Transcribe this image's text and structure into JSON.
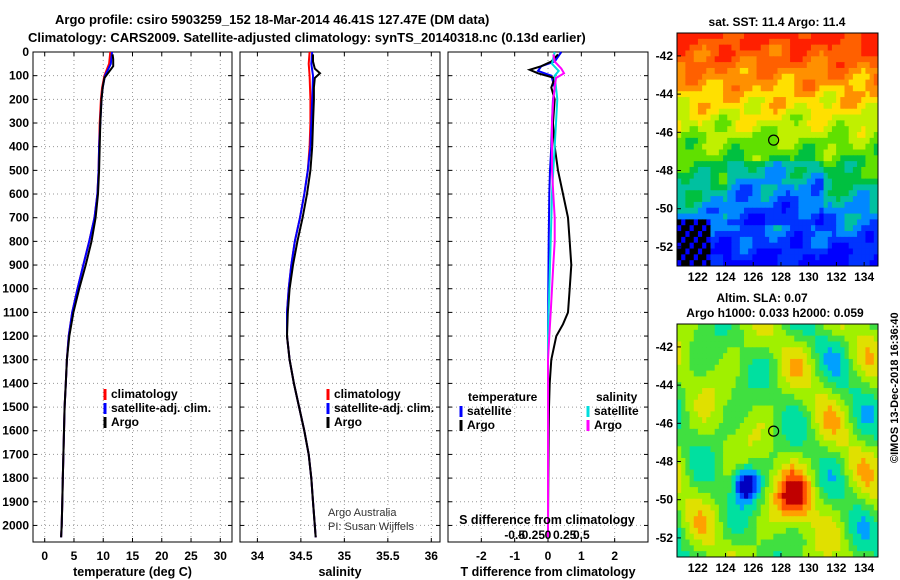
{
  "title": {
    "line1": "Argo profile: csiro 5903259_152 18-Mar-2014 46.41S 127.47E (DM data)",
    "line2": "Climatology: CARS2009. Satellite-adjusted climatology: synTS_20140318.nc (0.13d earlier)"
  },
  "colors": {
    "climatology": "#ff0000",
    "satellite": "#0000ff",
    "argo": "#000000",
    "satellite_salinity": "#00dddd",
    "argo_salinity": "#ff00ff"
  },
  "watermark": "©IMOS 13-Dec-2018 16:36:40",
  "chart_data": [
    {
      "type": "line",
      "panel": "temperature",
      "xlabel": "temperature (deg C)",
      "xlim": [
        -2,
        32
      ],
      "xticks": [
        0,
        5,
        10,
        15,
        20,
        25,
        30
      ],
      "xtick_labels": [
        "0",
        "5",
        "10",
        "15",
        "20",
        "25",
        "30"
      ],
      "ylim": [
        0,
        2070
      ],
      "yticks": [
        0,
        100,
        200,
        300,
        400,
        500,
        600,
        700,
        800,
        900,
        1000,
        1100,
        1200,
        1300,
        1400,
        1500,
        1600,
        1700,
        1800,
        1900,
        2000
      ],
      "ytick_labels": [
        "0",
        "100",
        "200",
        "300",
        "400",
        "500",
        "600",
        "700",
        "800",
        "900",
        "1000",
        "1100",
        "1200",
        "1300",
        "1400",
        "1500",
        "1600",
        "1700",
        "1800",
        "1900",
        "2000"
      ],
      "legend": [
        "climatology",
        "satellite-adj. clim.",
        "Argo"
      ],
      "series": [
        {
          "name": "climatology",
          "depth": [
            0,
            50,
            100,
            150,
            200,
            300,
            400,
            500,
            600,
            700,
            800,
            900,
            1000,
            1100,
            1200,
            1300,
            1400,
            1500,
            1600,
            1700,
            1800,
            1900,
            2000,
            2050
          ],
          "values": [
            11.2,
            11.0,
            10.2,
            9.8,
            9.6,
            9.4,
            9.3,
            9.2,
            9.0,
            8.5,
            7.6,
            6.6,
            5.6,
            4.7,
            4.1,
            3.8,
            3.6,
            3.4,
            3.3,
            3.2,
            3.1,
            3.0,
            2.9,
            2.8
          ]
        },
        {
          "name": "satellite-adj. clim.",
          "depth": [
            0,
            50,
            100,
            150,
            200,
            300,
            400,
            500,
            600,
            700,
            800,
            900,
            1000,
            1100,
            1200,
            1300,
            1400,
            1500,
            1600,
            1700,
            1800,
            1900,
            2000,
            2050
          ],
          "values": [
            11.5,
            11.3,
            10.3,
            9.9,
            9.7,
            9.5,
            9.3,
            9.2,
            9.0,
            8.5,
            7.6,
            6.6,
            5.6,
            4.7,
            4.1,
            3.8,
            3.6,
            3.4,
            3.3,
            3.2,
            3.1,
            3.0,
            2.9,
            2.8
          ]
        },
        {
          "name": "Argo",
          "depth": [
            10,
            30,
            60,
            90,
            110,
            150,
            200,
            300,
            400,
            500,
            600,
            700,
            800,
            900,
            1000,
            1100,
            1200,
            1300,
            1400,
            1500,
            1600,
            1700,
            1800,
            1900,
            2000,
            2050
          ],
          "values": [
            11.6,
            11.7,
            11.7,
            10.8,
            10.2,
            9.9,
            9.7,
            9.5,
            9.4,
            9.3,
            9.1,
            8.7,
            8.0,
            7.0,
            5.9,
            4.9,
            4.2,
            3.8,
            3.6,
            3.4,
            3.3,
            3.2,
            3.1,
            3.0,
            2.9,
            2.8
          ]
        }
      ]
    },
    {
      "type": "line",
      "panel": "salinity",
      "xlabel": "salinity",
      "xlim": [
        33.8,
        36.1
      ],
      "xticks": [
        34,
        34.5,
        35,
        35.5,
        36
      ],
      "xtick_labels": [
        "34",
        "34.5",
        "35",
        "35.5",
        "36"
      ],
      "ylim": [
        0,
        2070
      ],
      "legend": [
        "climatology",
        "satellite-adj. clim.",
        "Argo"
      ],
      "credit": [
        "Argo Australia",
        "PI: Susan Wijffels"
      ],
      "series": [
        {
          "name": "climatology",
          "depth": [
            0,
            50,
            100,
            200,
            300,
            400,
            500,
            600,
            700,
            800,
            900,
            1000,
            1100,
            1200,
            1300,
            1400,
            1500,
            1600,
            1700,
            1800,
            1900,
            2000,
            2050
          ],
          "values": [
            34.6,
            34.59,
            34.6,
            34.61,
            34.61,
            34.6,
            34.58,
            34.54,
            34.49,
            34.43,
            34.39,
            34.36,
            34.34,
            34.34,
            34.37,
            34.42,
            34.48,
            34.54,
            34.59,
            34.62,
            34.64,
            34.66,
            34.67
          ]
        },
        {
          "name": "satellite-adj. clim.",
          "depth": [
            0,
            50,
            100,
            200,
            300,
            400,
            500,
            600,
            700,
            800,
            900,
            1000,
            1100,
            1200,
            1300,
            1400,
            1500,
            1600,
            1700,
            1800,
            1900,
            2000,
            2050
          ],
          "values": [
            34.63,
            34.62,
            34.64,
            34.63,
            34.62,
            34.61,
            34.58,
            34.54,
            34.49,
            34.43,
            34.39,
            34.36,
            34.34,
            34.34,
            34.37,
            34.42,
            34.48,
            34.54,
            34.59,
            34.62,
            34.64,
            34.66,
            34.67
          ]
        },
        {
          "name": "Argo",
          "depth": [
            10,
            40,
            70,
            90,
            110,
            150,
            200,
            300,
            400,
            500,
            600,
            700,
            800,
            900,
            1000,
            1100,
            1200,
            1300,
            1400,
            1500,
            1600,
            1700,
            1800,
            1900,
            2000,
            2050
          ],
          "values": [
            34.64,
            34.64,
            34.66,
            34.72,
            34.66,
            34.65,
            34.65,
            34.64,
            34.63,
            34.61,
            34.57,
            34.52,
            34.46,
            34.41,
            34.37,
            34.35,
            34.34,
            34.37,
            34.42,
            34.48,
            34.54,
            34.59,
            34.62,
            34.64,
            34.66,
            34.67
          ]
        }
      ]
    },
    {
      "type": "line",
      "panel": "difference",
      "xlabel": "T difference from climatology",
      "xlim": [
        -3,
        3
      ],
      "xticks": [
        -2,
        -1,
        0,
        1,
        2
      ],
      "xtick_labels": [
        "-2",
        "-1",
        "0",
        "1",
        "2"
      ],
      "secondary_xlabel": "S difference from climatology",
      "secondary_xticks": [
        -0.5,
        -0.25,
        0,
        0.25,
        0.5
      ],
      "secondary_xtick_labels": [
        "-0.5",
        "-0.25",
        "0",
        "0.25",
        "0.5"
      ],
      "ylim": [
        0,
        2070
      ],
      "legend_temperature_title": "temperature",
      "legend_salinity_title": "salinity",
      "legend": [
        "satellite",
        "Argo"
      ],
      "series": [
        {
          "name": "temperature satellite",
          "depth": [
            0,
            40,
            60,
            80,
            100,
            150,
            200,
            300,
            400,
            500,
            600,
            800,
            1000,
            1200,
            1400,
            1600,
            1800,
            2000,
            2050
          ],
          "values": [
            0.4,
            0.2,
            -0.2,
            -0.3,
            0.1,
            0.2,
            0.15,
            0.12,
            0.1,
            0.06,
            0.04,
            0.02,
            0.01,
            0.0,
            0.0,
            0.0,
            0.0,
            0.0,
            0.0
          ]
        },
        {
          "name": "temperature Argo",
          "depth": [
            10,
            40,
            60,
            75,
            90,
            110,
            150,
            200,
            300,
            400,
            500,
            600,
            700,
            800,
            900,
            1000,
            1100,
            1150,
            1200,
            1300,
            1400,
            1500,
            1600,
            1800,
            2000,
            2050
          ],
          "values": [
            0.3,
            0.1,
            -0.2,
            -0.55,
            -0.3,
            0.2,
            0.1,
            0.2,
            0.15,
            0.2,
            0.3,
            0.45,
            0.6,
            0.65,
            0.7,
            0.65,
            0.6,
            0.45,
            0.25,
            0.1,
            0.05,
            0.03,
            0.02,
            0.01,
            0.0,
            0.0
          ]
        },
        {
          "name": "salinity satellite",
          "depth": [
            0,
            50,
            80,
            100,
            150,
            200,
            300,
            400,
            500,
            600,
            800,
            1000,
            1200,
            1400,
            1600,
            1800,
            2000,
            2050
          ],
          "values": [
            0.05,
            0.03,
            0.08,
            0.05,
            0.06,
            0.07,
            0.06,
            0.05,
            0.04,
            0.03,
            0.02,
            0.01,
            0.0,
            0.0,
            0.0,
            0.0,
            0.0,
            0.0
          ]
        },
        {
          "name": "salinity Argo",
          "depth": [
            10,
            40,
            70,
            90,
            110,
            150,
            200,
            300,
            400,
            500,
            600,
            700,
            800,
            900,
            1000,
            1100,
            1200,
            1300,
            1400,
            1600,
            2000,
            2050
          ],
          "values": [
            0.04,
            0.05,
            0.1,
            0.12,
            0.06,
            0.05,
            0.04,
            0.03,
            0.03,
            0.03,
            0.04,
            0.05,
            0.05,
            0.04,
            0.03,
            0.02,
            0.01,
            0.0,
            0.0,
            0.0,
            0.0,
            0.0
          ]
        }
      ]
    },
    {
      "type": "heatmap",
      "panel": "sst-map",
      "title": "sat. SST: 11.4 Argo: 11.4",
      "xlim": [
        120.5,
        135
      ],
      "ylim": [
        -53,
        -40.8
      ],
      "xticks": [
        122,
        124,
        126,
        128,
        130,
        132,
        134
      ],
      "xtick_labels": [
        "122",
        "124",
        "126",
        "128",
        "130",
        "132",
        "134"
      ],
      "yticks": [
        -42,
        -44,
        -46,
        -48,
        -50,
        -52
      ],
      "ytick_labels": [
        "-42",
        "-44",
        "-46",
        "-48",
        "-50",
        "-52"
      ],
      "marker": {
        "lon": 127.47,
        "lat": -46.41
      }
    },
    {
      "type": "heatmap",
      "panel": "sla-map",
      "title_line1": "Altim. SLA: 0.07",
      "title_line2": "Argo h1000: 0.033 h2000: 0.059",
      "xlim": [
        120.5,
        135
      ],
      "ylim": [
        -53,
        -40.8
      ],
      "xticks": [
        122,
        124,
        126,
        128,
        130,
        132,
        134
      ],
      "xtick_labels": [
        "122",
        "124",
        "126",
        "128",
        "130",
        "132",
        "134"
      ],
      "yticks": [
        -42,
        -44,
        -46,
        -48,
        -50,
        -52
      ],
      "ytick_labels": [
        "-42",
        "-44",
        "-46",
        "-48",
        "-50",
        "-52"
      ],
      "marker": {
        "lon": 127.47,
        "lat": -46.41
      }
    }
  ]
}
